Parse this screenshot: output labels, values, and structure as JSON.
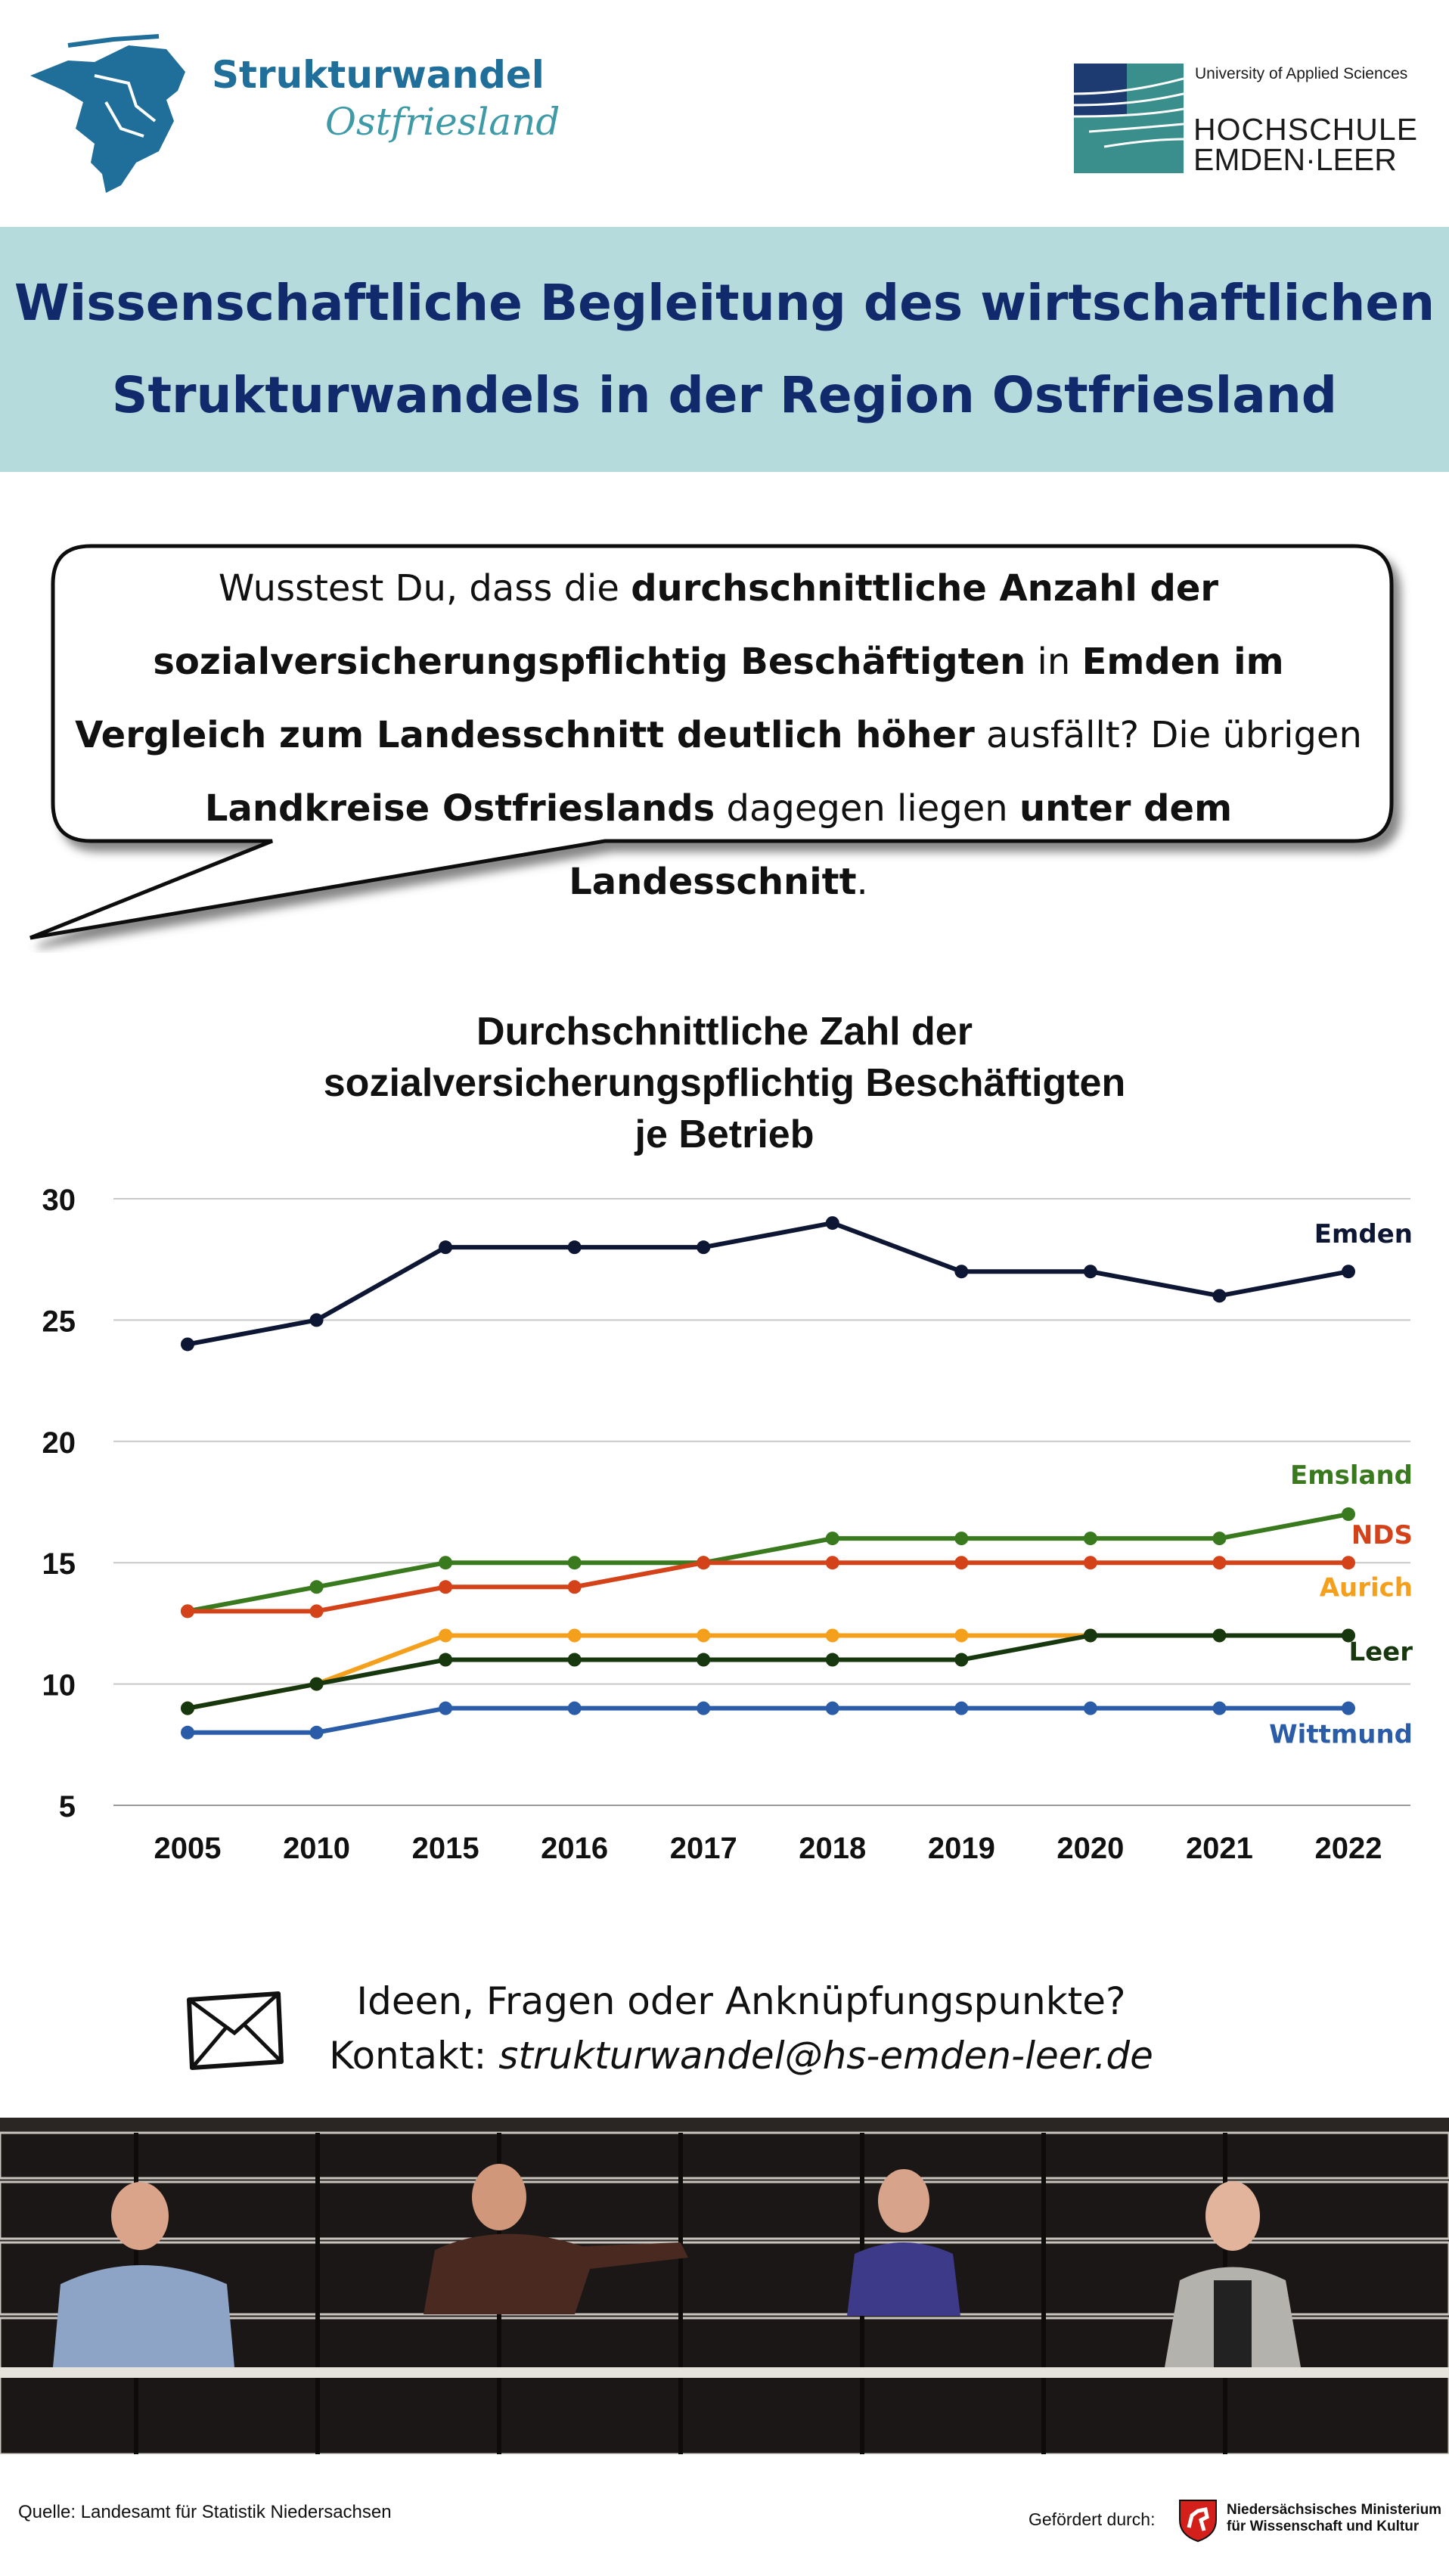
{
  "header": {
    "logo_title": "Strukturwandel",
    "logo_subtitle": "Ostfriesland",
    "uni_small": "University of Applied Sciences",
    "uni_line1": "HOCHSCHULE",
    "uni_line2": "EMDEN·LEER"
  },
  "banner": {
    "line1": "Wissenschaftliche Begleitung des wirtschaftlichen",
    "line2": "Strukturwandels in der Region Ostfriesland"
  },
  "bubble": {
    "t1": "Wusstest Du, dass die ",
    "b1": "durchschnittliche Anzahl der sozialversicherungspflichtig Beschäftigten",
    "t2": " in ",
    "b2": "Emden im Vergleich zum Landesschnitt deutlich höher",
    "t3": " ausfällt? Die übrigen ",
    "b3": "Landkreise Ostfrieslands",
    "t4": " dagegen liegen ",
    "b4": "unter dem Landesschnitt",
    "t5": "."
  },
  "chart_data": {
    "type": "line",
    "title_lines": [
      "Durchschnittliche Zahl der",
      "sozialversicherungspflichtig Beschäftigten",
      "je Betrieb"
    ],
    "categories": [
      "2005",
      "2010",
      "2015",
      "2016",
      "2017",
      "2018",
      "2019",
      "2020",
      "2021",
      "2022"
    ],
    "y_ticks": [
      5,
      10,
      15,
      20,
      25,
      30
    ],
    "ylim": [
      5,
      30
    ],
    "grid": true,
    "series": [
      {
        "name": "Emden",
        "color": "#0d1633",
        "values": [
          24,
          25,
          28,
          28,
          28,
          29,
          27,
          27,
          26,
          27
        ]
      },
      {
        "name": "Emsland",
        "color": "#3a7a1e",
        "values": [
          13,
          14,
          15,
          15,
          15,
          16,
          16,
          16,
          16,
          17
        ]
      },
      {
        "name": "NDS",
        "color": "#d4421a",
        "values": [
          13,
          13,
          14,
          14,
          15,
          15,
          15,
          15,
          15,
          15
        ]
      },
      {
        "name": "Aurich",
        "color": "#f5a01d",
        "values": [
          9,
          10,
          12,
          12,
          12,
          12,
          12,
          12,
          12,
          12
        ]
      },
      {
        "name": "Leer",
        "color": "#17380f",
        "values": [
          9,
          10,
          11,
          11,
          11,
          11,
          11,
          12,
          12,
          12
        ]
      },
      {
        "name": "Wittmund",
        "color": "#2a5ca8",
        "values": [
          8,
          8,
          9,
          9,
          9,
          9,
          9,
          9,
          9,
          9
        ]
      }
    ]
  },
  "contact": {
    "line1": "Ideen, Fragen oder Anknüpfungspunkte?",
    "line2_prefix": "Kontakt: ",
    "email": "strukturwandel@hs-emden-leer.de"
  },
  "footer": {
    "source": "Quelle: Landesamt für Statistik Niedersachsen",
    "funder": "Gefördert durch:",
    "ministry_line1": "Niedersächsisches Ministerium",
    "ministry_line2": "für Wissenschaft und Kultur"
  }
}
